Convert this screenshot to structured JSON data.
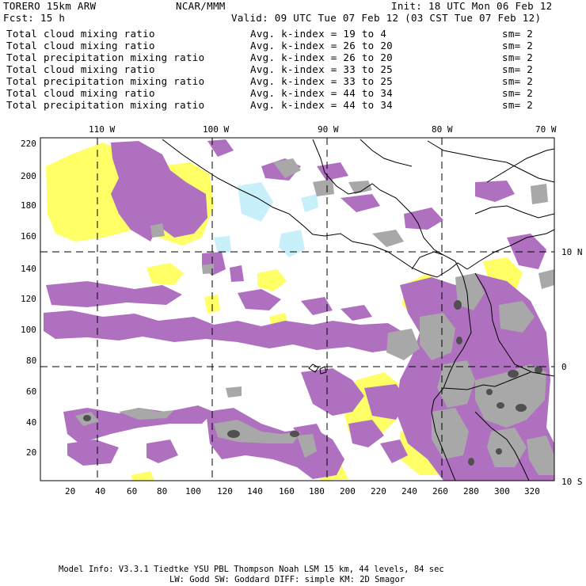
{
  "header": {
    "model": "TORERO  15km ARW",
    "org": "NCAR/MMM",
    "init": "Init: 18 UTC Mon 06 Feb 12",
    "fcst": "Fcst:    15 h",
    "valid": "Valid: 09 UTC Tue 07 Feb 12 (03 CST Tue 07 Feb 12)"
  },
  "legend": [
    {
      "field": "Total cloud mixing ratio",
      "kindex": "Avg. k-index =  19  to   4",
      "sm": "sm= 2",
      "color": "#0000cc"
    },
    {
      "field": "Total cloud mixing ratio",
      "kindex": "Avg. k-index =  26  to  20",
      "sm": "sm= 2",
      "color": "#8a8a00"
    },
    {
      "field": "Total precipitation mixing ratio",
      "kindex": "Avg. k-index =  26  to  20",
      "sm": "sm= 2",
      "color": "#8a8a00"
    },
    {
      "field": "Total cloud mixing ratio",
      "kindex": "Avg. k-index =  33  to  25",
      "sm": "sm= 2",
      "color": "#b46ab4"
    },
    {
      "field": "Total precipitation mixing ratio",
      "kindex": "Avg. k-index =  33  to  25",
      "sm": "sm= 2",
      "color": "#b46ab4"
    },
    {
      "field": "Total cloud mixing ratio",
      "kindex": "Avg. k-index =  44  to  34",
      "sm": "sm= 2",
      "color": "#000000"
    },
    {
      "field": "Total precipitation mixing ratio",
      "kindex": "Avg. k-index =  44  to  34",
      "sm": "sm= 2",
      "color": "#000000"
    }
  ],
  "axes": {
    "top_lon_labels": [
      "110 W",
      "100 W",
      "90 W",
      "80 W",
      "70 W"
    ],
    "right_lat_labels": [
      "10 N",
      "0",
      "10 S"
    ],
    "left_y_ticks": [
      "220",
      "200",
      "180",
      "160",
      "140",
      "120",
      "100",
      "80",
      "60",
      "40",
      "20"
    ],
    "bottom_x_ticks": [
      "20",
      "40",
      "60",
      "80",
      "100",
      "120",
      "140",
      "160",
      "180",
      "200",
      "220",
      "240",
      "260",
      "280",
      "300",
      "320"
    ]
  },
  "footer": {
    "line1": "Model Info: V3.3.1   Tiedtke YSU PBL  Thompson    Noah LSM  15 km,    44 levels,    84 sec",
    "line2": "LW: Godd SW: Goddard DIFF: simple KM: 2D Smagor"
  },
  "colors": {
    "cyan": "#c8f0fa",
    "yellow": "#ffff66",
    "purple": "#b070c0",
    "gray": "#a8a8a8",
    "dark_gray": "#505050"
  }
}
